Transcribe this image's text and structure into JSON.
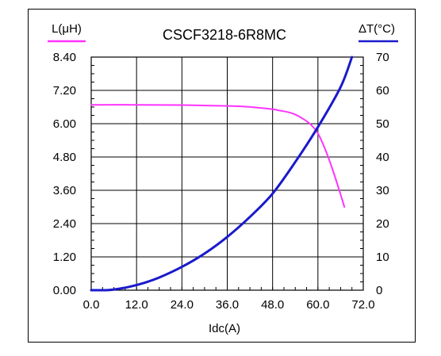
{
  "chart_data": {
    "type": "line",
    "title": "CSCF3218-6R8MC",
    "xlabel": "Idc(A)",
    "ylabel_left": "L(μH)",
    "ylabel_right": "ΔT(°C)",
    "xlim": [
      0,
      72
    ],
    "ylim_left": [
      0,
      8.4
    ],
    "ylim_right": [
      0,
      70
    ],
    "x_ticks": [
      "0.0",
      "12.0",
      "24.0",
      "36.0",
      "48.0",
      "60.0",
      "72.0"
    ],
    "y_left_ticks": [
      "0.00",
      "1.20",
      "2.40",
      "3.60",
      "4.80",
      "6.00",
      "7.20",
      "8.40"
    ],
    "y_right_ticks": [
      "0",
      "10",
      "20",
      "30",
      "40",
      "50",
      "60",
      "70"
    ],
    "grid": true,
    "series": [
      {
        "name": "L(μH)",
        "axis": "left",
        "color": "#ff33ff",
        "x": [
          0,
          12,
          24,
          36,
          40,
          44,
          48,
          50,
          52,
          54,
          56,
          58,
          60,
          62,
          64,
          66,
          67
        ],
        "y": [
          6.68,
          6.68,
          6.67,
          6.64,
          6.62,
          6.58,
          6.52,
          6.47,
          6.42,
          6.33,
          6.18,
          5.98,
          5.65,
          5.05,
          4.3,
          3.45,
          3.0
        ]
      },
      {
        "name": "ΔT(°C)",
        "axis": "right",
        "color": "#1a1acc",
        "x": [
          0,
          4,
          6,
          10,
          14,
          18,
          24,
          30,
          36,
          42,
          48,
          54,
          60,
          66,
          69
        ],
        "y": [
          0,
          0,
          0.2,
          1.0,
          2.2,
          3.8,
          7.0,
          11.0,
          16.0,
          22.0,
          29.0,
          38.5,
          49.0,
          61.0,
          70
        ]
      }
    ]
  }
}
